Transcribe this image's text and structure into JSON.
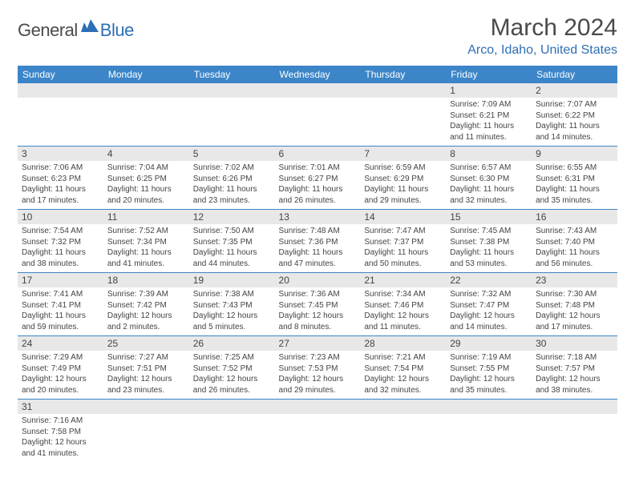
{
  "logo": {
    "text1": "General",
    "text2": "Blue"
  },
  "title": "March 2024",
  "location": "Arco, Idaho, United States",
  "colors": {
    "header_bg": "#3b85c8",
    "header_text": "#ffffff",
    "daynum_bg": "#e8e8e8",
    "row_border": "#3b85c8",
    "accent": "#2d6fb5",
    "body_text": "#444444",
    "background": "#ffffff"
  },
  "weekdays": [
    "Sunday",
    "Monday",
    "Tuesday",
    "Wednesday",
    "Thursday",
    "Friday",
    "Saturday"
  ],
  "weeks": [
    [
      null,
      null,
      null,
      null,
      null,
      {
        "d": "1",
        "sr": "7:09 AM",
        "ss": "6:21 PM",
        "dl": "11 hours and 11 minutes."
      },
      {
        "d": "2",
        "sr": "7:07 AM",
        "ss": "6:22 PM",
        "dl": "11 hours and 14 minutes."
      }
    ],
    [
      {
        "d": "3",
        "sr": "7:06 AM",
        "ss": "6:23 PM",
        "dl": "11 hours and 17 minutes."
      },
      {
        "d": "4",
        "sr": "7:04 AM",
        "ss": "6:25 PM",
        "dl": "11 hours and 20 minutes."
      },
      {
        "d": "5",
        "sr": "7:02 AM",
        "ss": "6:26 PM",
        "dl": "11 hours and 23 minutes."
      },
      {
        "d": "6",
        "sr": "7:01 AM",
        "ss": "6:27 PM",
        "dl": "11 hours and 26 minutes."
      },
      {
        "d": "7",
        "sr": "6:59 AM",
        "ss": "6:29 PM",
        "dl": "11 hours and 29 minutes."
      },
      {
        "d": "8",
        "sr": "6:57 AM",
        "ss": "6:30 PM",
        "dl": "11 hours and 32 minutes."
      },
      {
        "d": "9",
        "sr": "6:55 AM",
        "ss": "6:31 PM",
        "dl": "11 hours and 35 minutes."
      }
    ],
    [
      {
        "d": "10",
        "sr": "7:54 AM",
        "ss": "7:32 PM",
        "dl": "11 hours and 38 minutes."
      },
      {
        "d": "11",
        "sr": "7:52 AM",
        "ss": "7:34 PM",
        "dl": "11 hours and 41 minutes."
      },
      {
        "d": "12",
        "sr": "7:50 AM",
        "ss": "7:35 PM",
        "dl": "11 hours and 44 minutes."
      },
      {
        "d": "13",
        "sr": "7:48 AM",
        "ss": "7:36 PM",
        "dl": "11 hours and 47 minutes."
      },
      {
        "d": "14",
        "sr": "7:47 AM",
        "ss": "7:37 PM",
        "dl": "11 hours and 50 minutes."
      },
      {
        "d": "15",
        "sr": "7:45 AM",
        "ss": "7:38 PM",
        "dl": "11 hours and 53 minutes."
      },
      {
        "d": "16",
        "sr": "7:43 AM",
        "ss": "7:40 PM",
        "dl": "11 hours and 56 minutes."
      }
    ],
    [
      {
        "d": "17",
        "sr": "7:41 AM",
        "ss": "7:41 PM",
        "dl": "11 hours and 59 minutes."
      },
      {
        "d": "18",
        "sr": "7:39 AM",
        "ss": "7:42 PM",
        "dl": "12 hours and 2 minutes."
      },
      {
        "d": "19",
        "sr": "7:38 AM",
        "ss": "7:43 PM",
        "dl": "12 hours and 5 minutes."
      },
      {
        "d": "20",
        "sr": "7:36 AM",
        "ss": "7:45 PM",
        "dl": "12 hours and 8 minutes."
      },
      {
        "d": "21",
        "sr": "7:34 AM",
        "ss": "7:46 PM",
        "dl": "12 hours and 11 minutes."
      },
      {
        "d": "22",
        "sr": "7:32 AM",
        "ss": "7:47 PM",
        "dl": "12 hours and 14 minutes."
      },
      {
        "d": "23",
        "sr": "7:30 AM",
        "ss": "7:48 PM",
        "dl": "12 hours and 17 minutes."
      }
    ],
    [
      {
        "d": "24",
        "sr": "7:29 AM",
        "ss": "7:49 PM",
        "dl": "12 hours and 20 minutes."
      },
      {
        "d": "25",
        "sr": "7:27 AM",
        "ss": "7:51 PM",
        "dl": "12 hours and 23 minutes."
      },
      {
        "d": "26",
        "sr": "7:25 AM",
        "ss": "7:52 PM",
        "dl": "12 hours and 26 minutes."
      },
      {
        "d": "27",
        "sr": "7:23 AM",
        "ss": "7:53 PM",
        "dl": "12 hours and 29 minutes."
      },
      {
        "d": "28",
        "sr": "7:21 AM",
        "ss": "7:54 PM",
        "dl": "12 hours and 32 minutes."
      },
      {
        "d": "29",
        "sr": "7:19 AM",
        "ss": "7:55 PM",
        "dl": "12 hours and 35 minutes."
      },
      {
        "d": "30",
        "sr": "7:18 AM",
        "ss": "7:57 PM",
        "dl": "12 hours and 38 minutes."
      }
    ],
    [
      {
        "d": "31",
        "sr": "7:16 AM",
        "ss": "7:58 PM",
        "dl": "12 hours and 41 minutes."
      },
      null,
      null,
      null,
      null,
      null,
      null
    ]
  ],
  "labels": {
    "sunrise": "Sunrise:",
    "sunset": "Sunset:",
    "daylight": "Daylight:"
  }
}
